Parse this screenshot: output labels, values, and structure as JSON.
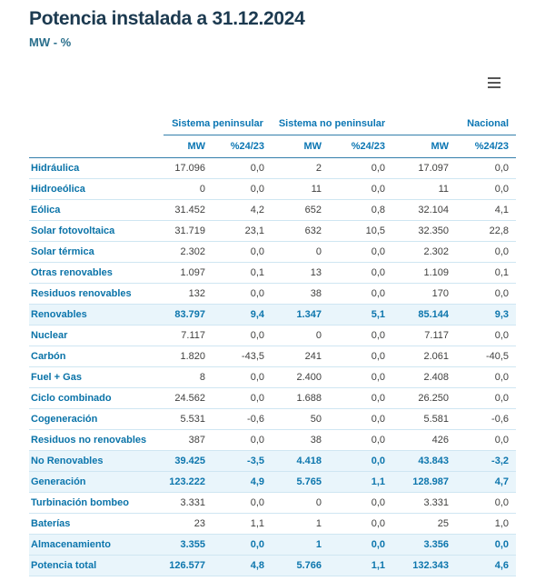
{
  "page": {
    "title": "Potencia instalada a 31.12.2024",
    "subtitle": "MW - %"
  },
  "menu": {
    "icon": "hamburger-menu-icon"
  },
  "colors": {
    "title_color": "#1c3a50",
    "accent_blue": "#0b76b3",
    "row_label_blue": "#0a73a8",
    "highlight_row_bg": "#e9f5fb",
    "row_separator": "#cfe6f2",
    "header_line": "#337fab",
    "value_text": "#3f3f3e",
    "menu_icon_gray": "#565656"
  },
  "chart_data": {
    "type": "table",
    "title": "Potencia instalada a 31.12.2024",
    "units": "MW - %",
    "group_headers": [
      {
        "label": "Sistema peninsular"
      },
      {
        "label": "Sistema no peninsular"
      },
      {
        "label": "Nacional"
      }
    ],
    "sub_headers": [
      "MW",
      "%24/23",
      "MW",
      "%24/23",
      "MW",
      "%24/23"
    ],
    "rows": [
      {
        "label": "Hidráulica",
        "values": [
          "17.096",
          "0,0",
          "2",
          "0,0",
          "17.097",
          "0,0"
        ],
        "highlight": false
      },
      {
        "label": "Hidroeólica",
        "values": [
          "0",
          "0,0",
          "11",
          "0,0",
          "11",
          "0,0"
        ],
        "highlight": false
      },
      {
        "label": "Eólica",
        "values": [
          "31.452",
          "4,2",
          "652",
          "0,8",
          "32.104",
          "4,1"
        ],
        "highlight": false
      },
      {
        "label": "Solar fotovoltaica",
        "values": [
          "31.719",
          "23,1",
          "632",
          "10,5",
          "32.350",
          "22,8"
        ],
        "highlight": false
      },
      {
        "label": "Solar térmica",
        "values": [
          "2.302",
          "0,0",
          "0",
          "0,0",
          "2.302",
          "0,0"
        ],
        "highlight": false
      },
      {
        "label": "Otras renovables",
        "values": [
          "1.097",
          "0,1",
          "13",
          "0,0",
          "1.109",
          "0,1"
        ],
        "highlight": false
      },
      {
        "label": "Residuos renovables",
        "values": [
          "132",
          "0,0",
          "38",
          "0,0",
          "170",
          "0,0"
        ],
        "highlight": false
      },
      {
        "label": "Renovables",
        "values": [
          "83.797",
          "9,4",
          "1.347",
          "5,1",
          "85.144",
          "9,3"
        ],
        "highlight": true
      },
      {
        "label": "Nuclear",
        "values": [
          "7.117",
          "0,0",
          "0",
          "0,0",
          "7.117",
          "0,0"
        ],
        "highlight": false
      },
      {
        "label": "Carbón",
        "values": [
          "1.820",
          "-43,5",
          "241",
          "0,0",
          "2.061",
          "-40,5"
        ],
        "highlight": false
      },
      {
        "label": "Fuel + Gas",
        "values": [
          "8",
          "0,0",
          "2.400",
          "0,0",
          "2.408",
          "0,0"
        ],
        "highlight": false
      },
      {
        "label": "Ciclo combinado",
        "values": [
          "24.562",
          "0,0",
          "1.688",
          "0,0",
          "26.250",
          "0,0"
        ],
        "highlight": false
      },
      {
        "label": "Cogeneración",
        "values": [
          "5.531",
          "-0,6",
          "50",
          "0,0",
          "5.581",
          "-0,6"
        ],
        "highlight": false
      },
      {
        "label": "Residuos no renovables",
        "values": [
          "387",
          "0,0",
          "38",
          "0,0",
          "426",
          "0,0"
        ],
        "highlight": false
      },
      {
        "label": "No Renovables",
        "values": [
          "39.425",
          "-3,5",
          "4.418",
          "0,0",
          "43.843",
          "-3,2"
        ],
        "highlight": true
      },
      {
        "label": "Generación",
        "values": [
          "123.222",
          "4,9",
          "5.765",
          "1,1",
          "128.987",
          "4,7"
        ],
        "highlight": true
      },
      {
        "label": "Turbinación bombeo",
        "values": [
          "3.331",
          "0,0",
          "0",
          "0,0",
          "3.331",
          "0,0"
        ],
        "highlight": false
      },
      {
        "label": "Baterías",
        "values": [
          "23",
          "1,1",
          "1",
          "0,0",
          "25",
          "1,0"
        ],
        "highlight": false
      },
      {
        "label": "Almacenamiento",
        "values": [
          "3.355",
          "0,0",
          "1",
          "0,0",
          "3.356",
          "0,0"
        ],
        "highlight": true
      },
      {
        "label": "Potencia total",
        "values": [
          "126.577",
          "4,8",
          "5.766",
          "1,1",
          "132.343",
          "4,6"
        ],
        "highlight": true
      }
    ]
  }
}
